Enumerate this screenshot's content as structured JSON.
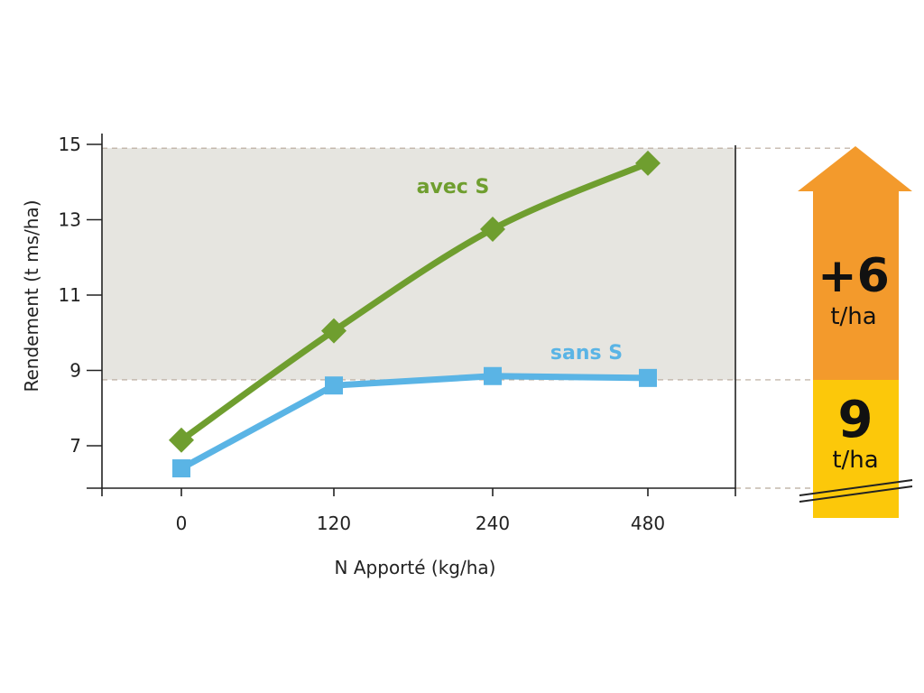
{
  "chart_data": {
    "type": "line",
    "xlabel": "N Apporté (kg/ha)",
    "ylabel": "Rendement (t ms/ha)",
    "categories": [
      "0",
      "120",
      "240",
      "480"
    ],
    "ylim": [
      6,
      15
    ],
    "yticks": [
      7,
      9,
      11,
      13,
      15
    ],
    "highlight_band": [
      8.75,
      14.9
    ],
    "series": [
      {
        "name": "avec S",
        "values": [
          7.15,
          10.05,
          12.75,
          14.5
        ],
        "color": "#6f9e2f",
        "marker": "diamond"
      },
      {
        "name": "sans S",
        "values": [
          6.4,
          8.6,
          8.85,
          8.8
        ],
        "color": "#5ab4e5",
        "marker": "square"
      }
    ]
  },
  "side_arrow": {
    "gain_value": "+6",
    "gain_unit": "t/ha",
    "base_value": "9",
    "base_unit": "t/ha",
    "gain_color": "#f39a2c",
    "base_color": "#fcc80a"
  },
  "colors": {
    "band": "#e6e5e0",
    "axis": "#222222",
    "guide": "#b8a99a"
  }
}
